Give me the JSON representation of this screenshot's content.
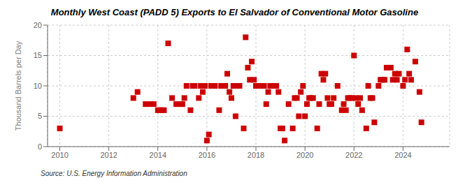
{
  "chart_data": {
    "type": "scatter",
    "title": "Monthly West Coast (PADD 5) Exports to El Salvador of Conventional Motor Gasoline",
    "y_label": "Thousand Barrels per Day",
    "annotations": [
      "Source: U.S. Energy Information Administration"
    ],
    "x": [
      2010.0,
      2013.0,
      2013.17,
      2013.5,
      2013.67,
      2013.83,
      2014.0,
      2014.08,
      2014.17,
      2014.25,
      2014.42,
      2014.58,
      2014.75,
      2014.92,
      2015.0,
      2015.08,
      2015.17,
      2015.33,
      2015.42,
      2015.5,
      2015.67,
      2015.75,
      2015.83,
      2015.92,
      2016.0,
      2016.08,
      2016.17,
      2016.25,
      2016.33,
      2016.5,
      2016.58,
      2016.67,
      2016.75,
      2016.83,
      2016.92,
      2017.0,
      2017.08,
      2017.17,
      2017.25,
      2017.33,
      2017.5,
      2017.58,
      2017.67,
      2017.75,
      2017.83,
      2017.92,
      2018.0,
      2018.08,
      2018.17,
      2018.25,
      2018.33,
      2018.42,
      2018.5,
      2018.58,
      2018.67,
      2018.75,
      2018.83,
      2018.92,
      2019.0,
      2019.08,
      2019.17,
      2019.33,
      2019.5,
      2019.58,
      2019.67,
      2019.75,
      2019.83,
      2019.92,
      2020.0,
      2020.08,
      2020.17,
      2020.25,
      2020.33,
      2020.5,
      2020.58,
      2020.67,
      2020.75,
      2020.83,
      2020.92,
      2021.0,
      2021.08,
      2021.17,
      2021.33,
      2021.5,
      2021.58,
      2021.67,
      2021.75,
      2021.83,
      2021.92,
      2022.0,
      2022.08,
      2022.17,
      2022.25,
      2022.33,
      2022.5,
      2022.58,
      2022.67,
      2022.75,
      2022.83,
      2023.0,
      2023.08,
      2023.17,
      2023.25,
      2023.33,
      2023.5,
      2023.58,
      2023.67,
      2023.75,
      2023.83,
      2024.0,
      2024.08,
      2024.17,
      2024.25,
      2024.33,
      2024.5,
      2024.67,
      2024.75
    ],
    "values": [
      3,
      8,
      9,
      7,
      7,
      7,
      6,
      6,
      6,
      6,
      17,
      8,
      7,
      7,
      7,
      8,
      10,
      6,
      10,
      10,
      8,
      10,
      9,
      10,
      1,
      2,
      10,
      10,
      10,
      6,
      10,
      10,
      10,
      12,
      9,
      8,
      10,
      5,
      10,
      10,
      3,
      18,
      13,
      11,
      14,
      11,
      10,
      10,
      10,
      10,
      10,
      7,
      9,
      10,
      10,
      10,
      10,
      9,
      3,
      3,
      1,
      7,
      3,
      8,
      8,
      5,
      9,
      10,
      5,
      7,
      8,
      8,
      8,
      3,
      7,
      12,
      11,
      12,
      8,
      7,
      7,
      8,
      10,
      6,
      7,
      6,
      8,
      8,
      8,
      15,
      8,
      7,
      8,
      6,
      3,
      10,
      8,
      8,
      4,
      10,
      11,
      11,
      11,
      13,
      13,
      11,
      12,
      11,
      12,
      10,
      11,
      16,
      12,
      11,
      14,
      9,
      4
    ],
    "color": "#cc0000",
    "marker": "square",
    "xlim": [
      2009.5,
      2025.9
    ],
    "xticks": [
      2010,
      2012,
      2014,
      2016,
      2018,
      2020,
      2022,
      2024
    ],
    "ylim": [
      0,
      20
    ],
    "yticks": [
      0,
      5,
      10,
      15,
      20
    ],
    "grid": true
  }
}
